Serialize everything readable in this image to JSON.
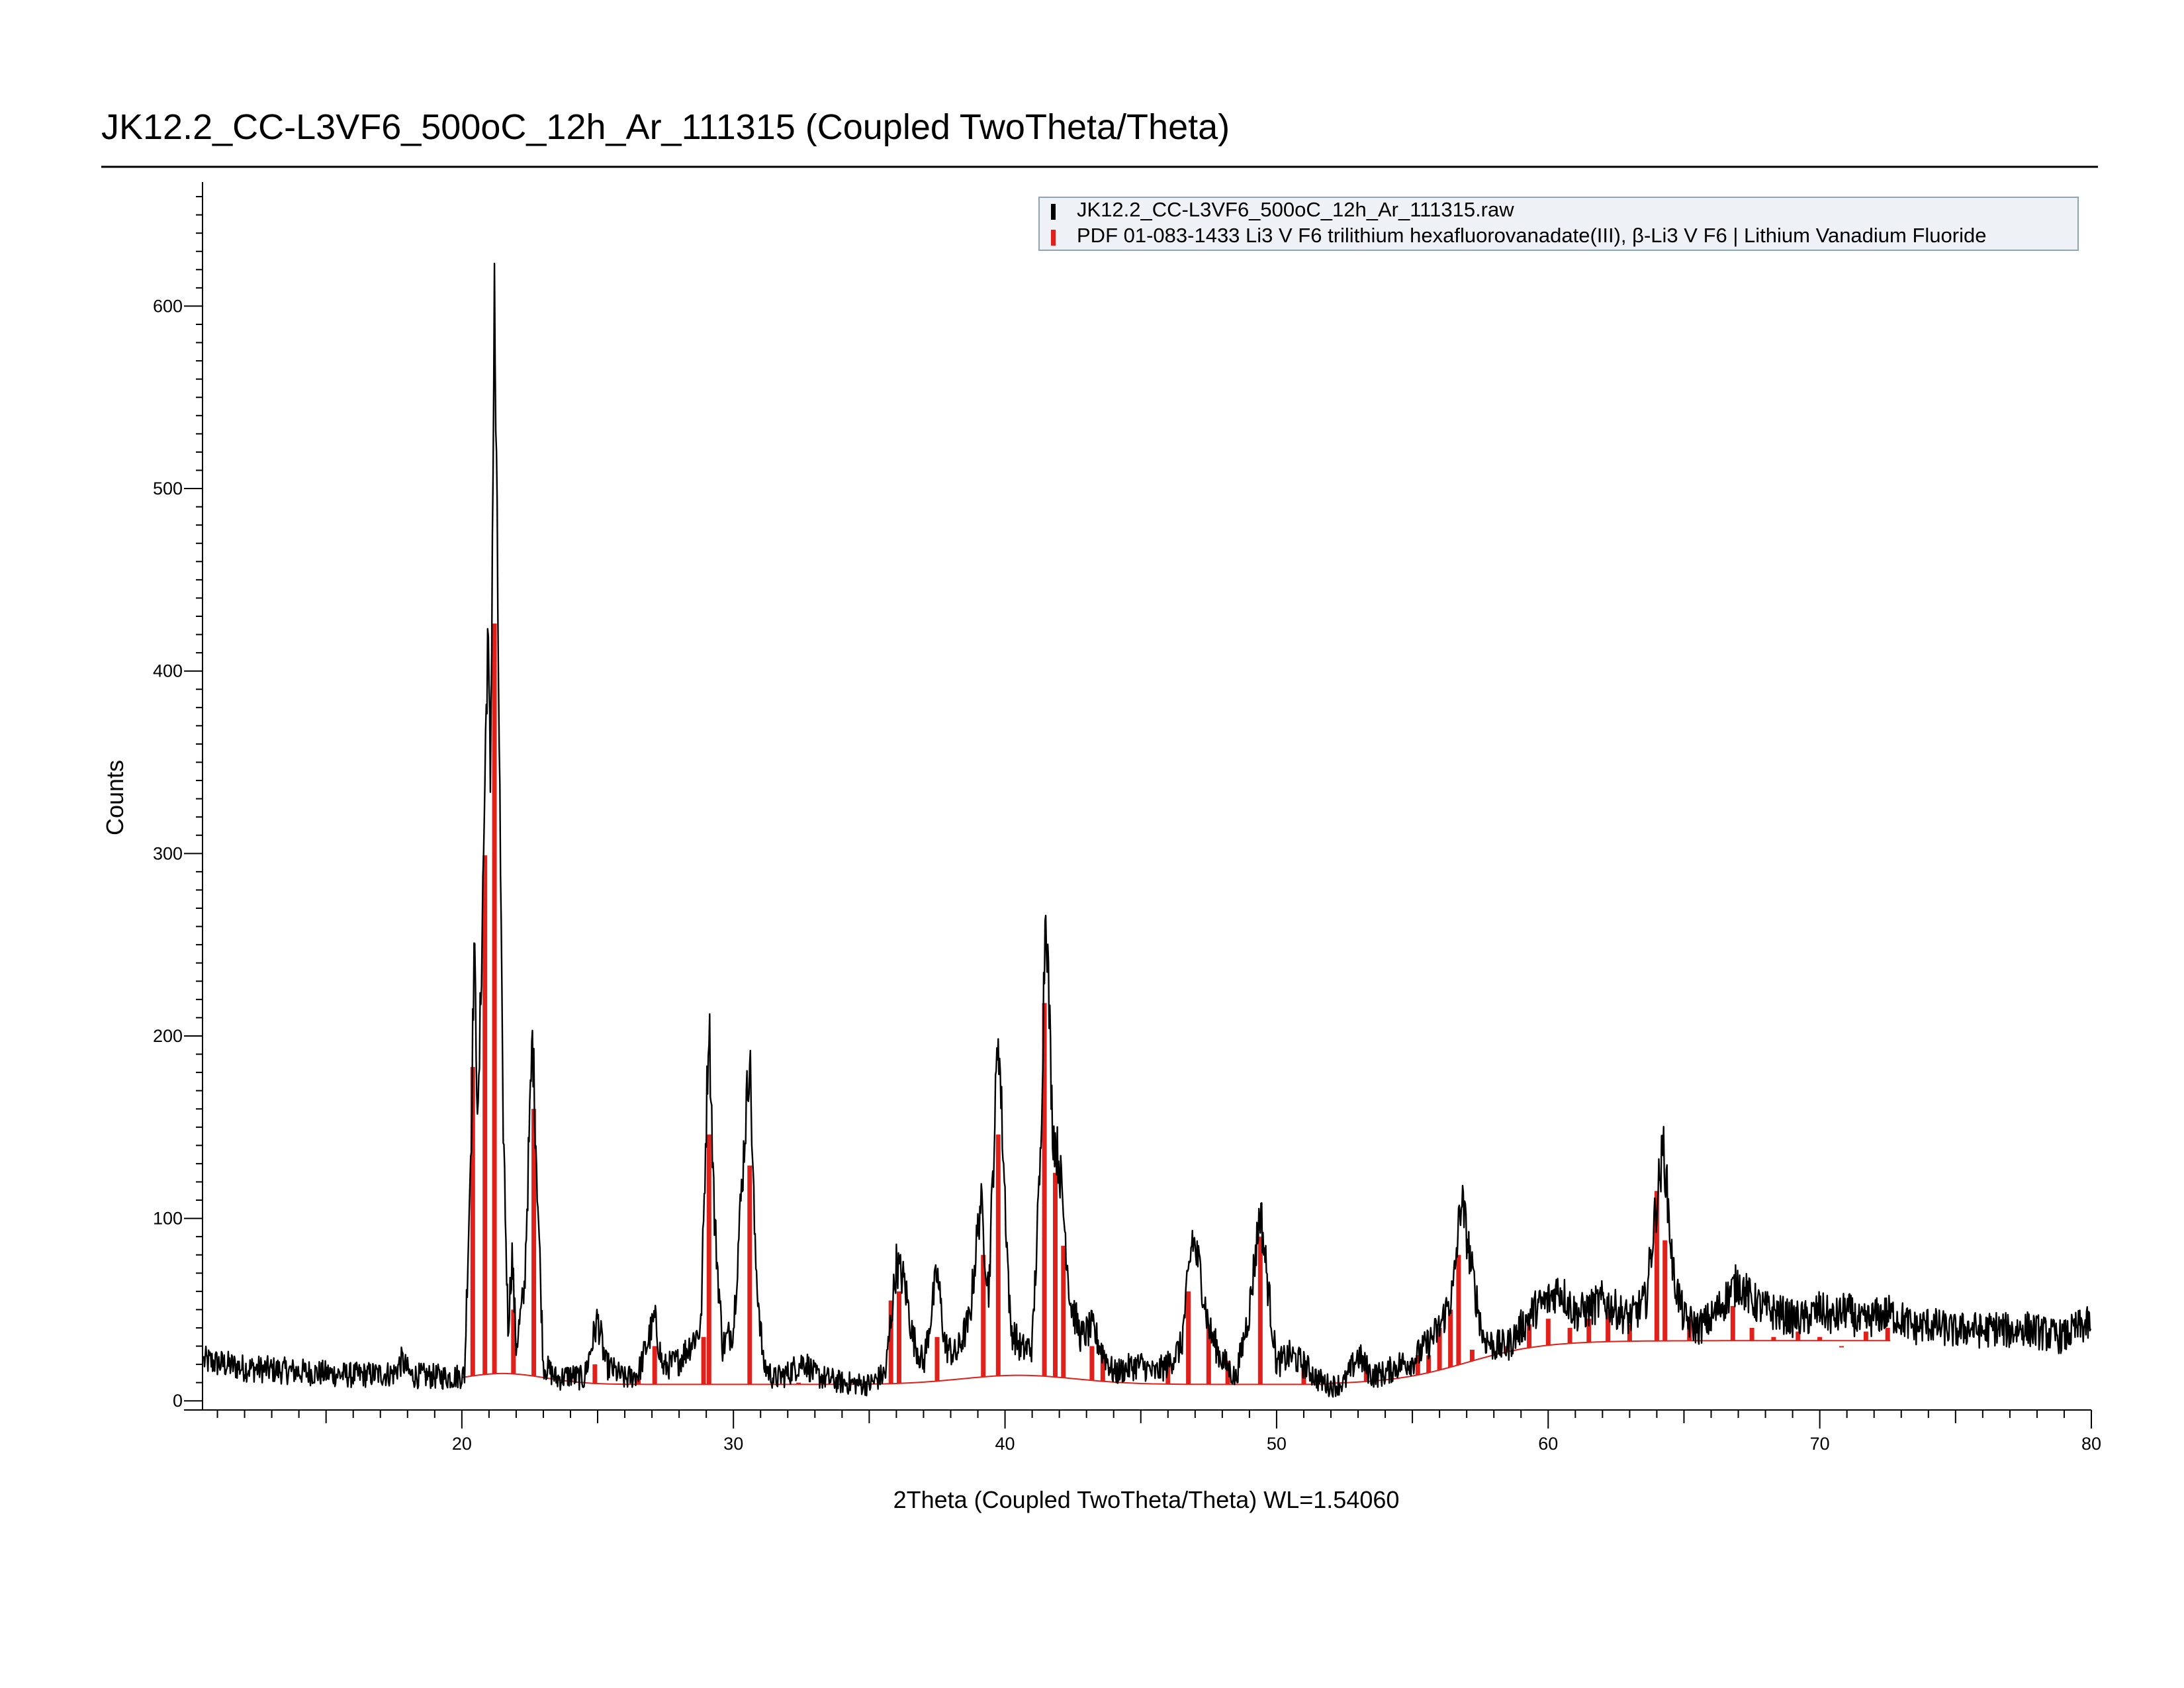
{
  "chart_data": {
    "type": "line",
    "title": "JK12.2_CC-L3VF6_500oC_12h_Ar_111315 (Coupled TwoTheta/Theta)",
    "xlabel": "2Theta (Coupled TwoTheta/Theta) WL=1.54060",
    "ylabel": "Counts",
    "xlim": [
      10.5,
      80
    ],
    "ylim": [
      -5,
      668
    ],
    "x_ticks": [
      20,
      30,
      40,
      50,
      60,
      70,
      80
    ],
    "y_ticks": [
      0,
      100,
      200,
      300,
      400,
      500,
      600
    ],
    "grid": false,
    "legend_position": "top-right",
    "colors": {
      "measured": "#000000",
      "reference": "#e0201b",
      "legend_bg": "#eef2f6",
      "legend_border": "#8fa3b8"
    },
    "series": [
      {
        "name": "JK12.2_CC-L3VF6_500oC_12h_Ar_111315.raw",
        "kind": "measured",
        "x": [
          10.5,
          12,
          14,
          16,
          17.5,
          17.8,
          18.1,
          19.5,
          20.1,
          20.35,
          20.45,
          20.6,
          20.8,
          20.95,
          21.05,
          21.2,
          21.35,
          21.5,
          21.7,
          21.85,
          22.0,
          22.3,
          22.6,
          22.8,
          23.0,
          23.5,
          24.0,
          24.5,
          25.0,
          25.3,
          26.0,
          26.5,
          27.1,
          27.4,
          28.0,
          28.8,
          29.1,
          29.3,
          29.6,
          30.0,
          30.6,
          30.8,
          31.1,
          31.5,
          32.0,
          32.6,
          33.0,
          34.0,
          35.0,
          35.6,
          36.0,
          36.3,
          36.6,
          37.0,
          37.5,
          37.8,
          38.2,
          38.7,
          39.1,
          39.4,
          39.75,
          39.95,
          40.2,
          40.6,
          41.0,
          41.3,
          41.5,
          41.75,
          42.0,
          42.2,
          42.4,
          42.8,
          43.2,
          43.5,
          44.0,
          44.5,
          45.0,
          45.5,
          46.0,
          46.5,
          46.9,
          47.2,
          47.5,
          47.9,
          48.5,
          49.0,
          49.4,
          49.7,
          50.0,
          50.5,
          51.0,
          51.5,
          52.0,
          52.5,
          53.0,
          53.5,
          54.0,
          54.5,
          55.0,
          55.5,
          56.0,
          56.5,
          56.8,
          57.2,
          57.6,
          58.0,
          58.5,
          59.0,
          59.5,
          60.0,
          60.4,
          61.0,
          61.5,
          62.0,
          62.5,
          63.0,
          63.6,
          64.0,
          64.25,
          64.6,
          65.0,
          65.5,
          66.0,
          66.5,
          67.0,
          67.5,
          68.0,
          68.5,
          69.0,
          69.5,
          70.0,
          70.5,
          71.0,
          71.5,
          72.0,
          72.5,
          73.0,
          73.5,
          74.0,
          74.5,
          75.0,
          75.5,
          76.0,
          76.5,
          77.0,
          77.5,
          78.0,
          78.5,
          79.0,
          79.5,
          80.0
        ],
        "y": [
          22,
          18,
          16,
          14,
          15,
          22,
          14,
          13,
          14,
          150,
          250,
          150,
          300,
          420,
          340,
          605,
          400,
          170,
          40,
          80,
          30,
          60,
          200,
          110,
          20,
          12,
          14,
          12,
          45,
          20,
          12,
          15,
          45,
          18,
          22,
          40,
          212,
          100,
          30,
          40,
          192,
          80,
          20,
          12,
          15,
          22,
          14,
          10,
          9,
          15,
          75,
          65,
          35,
          20,
          70,
          30,
          25,
          45,
          110,
          60,
          205,
          130,
          40,
          28,
          30,
          130,
          280,
          150,
          130,
          95,
          55,
          35,
          40,
          30,
          15,
          18,
          20,
          15,
          20,
          30,
          90,
          70,
          40,
          25,
          12,
          50,
          105,
          60,
          20,
          25,
          20,
          12,
          8,
          10,
          25,
          14,
          15,
          20,
          22,
          30,
          40,
          60,
          112,
          70,
          35,
          30,
          30,
          40,
          50,
          55,
          62,
          48,
          50,
          55,
          50,
          45,
          55,
          110,
          140,
          70,
          45,
          40,
          45,
          55,
          65,
          55,
          50,
          48,
          45,
          45,
          50,
          45,
          50,
          42,
          46,
          48,
          45,
          40,
          42,
          40,
          38,
          40,
          38,
          40,
          38,
          40,
          38,
          36,
          35,
          40,
          42
        ]
      },
      {
        "name": "PDF 01-083-1433 Li3 V F6 trilithium hexafluorovanadate(III), β-Li3 V F6 | Lithium Vanadium Fluoride",
        "kind": "reference_sticks",
        "x": [
          20.4,
          20.85,
          21.2,
          21.9,
          22.65,
          24.0,
          24.9,
          26.5,
          27.1,
          28.9,
          29.1,
          30.6,
          32.4,
          35.8,
          36.1,
          37.5,
          39.2,
          39.75,
          41.45,
          41.85,
          42.15,
          43.2,
          43.6,
          46.0,
          46.75,
          47.5,
          48.2,
          49.4,
          51.0,
          53.3,
          55.2,
          55.6,
          56.0,
          56.4,
          56.7,
          57.2,
          58.5,
          59.3,
          60.0,
          60.8,
          61.5,
          62.2,
          63.0,
          64.0,
          64.3,
          65.2,
          66.8,
          67.5,
          68.3,
          69.2,
          70.0,
          70.8,
          71.7,
          72.5
        ],
        "y": [
          183,
          299,
          426,
          50,
          160,
          15,
          20,
          12,
          30,
          35,
          146,
          129,
          10,
          55,
          60,
          35,
          80,
          146,
          218,
          125,
          85,
          30,
          28,
          25,
          60,
          42,
          22,
          90,
          18,
          20,
          25,
          25,
          40,
          50,
          80,
          28,
          30,
          42,
          45,
          40,
          45,
          50,
          42,
          115,
          88,
          45,
          52,
          40,
          35,
          38,
          35,
          30,
          38,
          40
        ]
      }
    ]
  }
}
